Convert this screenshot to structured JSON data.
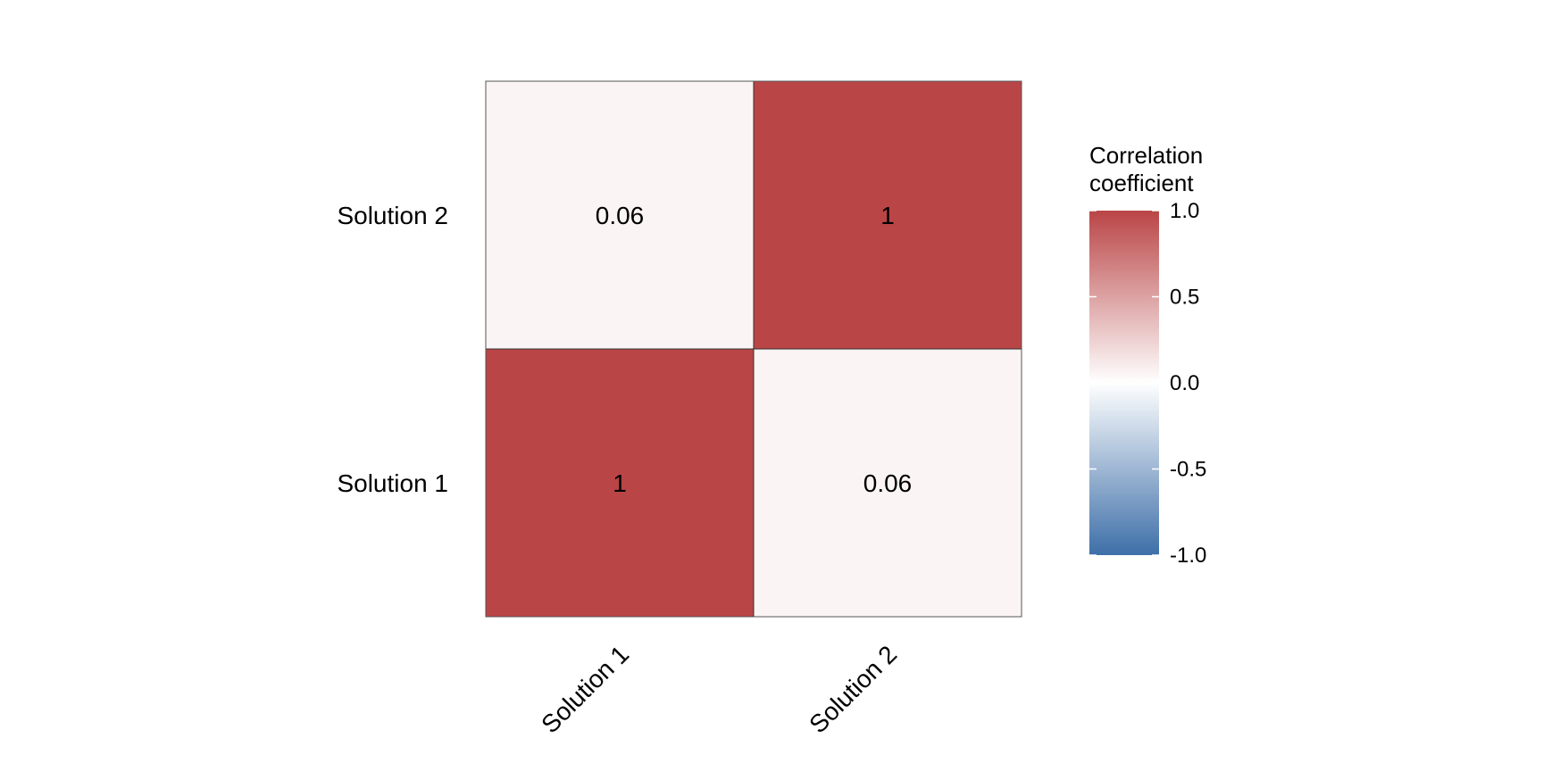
{
  "chart_data": {
    "type": "heatmap",
    "rows": [
      "Solution 2",
      "Solution 1"
    ],
    "columns": [
      "Solution 1",
      "Solution 2"
    ],
    "values": [
      [
        0.06,
        1
      ],
      [
        1,
        0.06
      ]
    ],
    "cell_labels": [
      [
        "0.06",
        "1"
      ],
      [
        "1",
        "0.06"
      ]
    ],
    "legend": {
      "title_lines": [
        "Correlation",
        "coefficient"
      ],
      "range": [
        -1.0,
        1.0
      ],
      "ticks": [
        1.0,
        0.5,
        0.0,
        -0.5,
        -1.0
      ],
      "tick_labels": [
        "1.0",
        "0.5",
        "0.0",
        "-0.5",
        "-1.0"
      ],
      "low_color": "#3E6FA8",
      "mid_color": "#FFFFFF",
      "high_color": "#BA4546",
      "placement": "right"
    }
  }
}
